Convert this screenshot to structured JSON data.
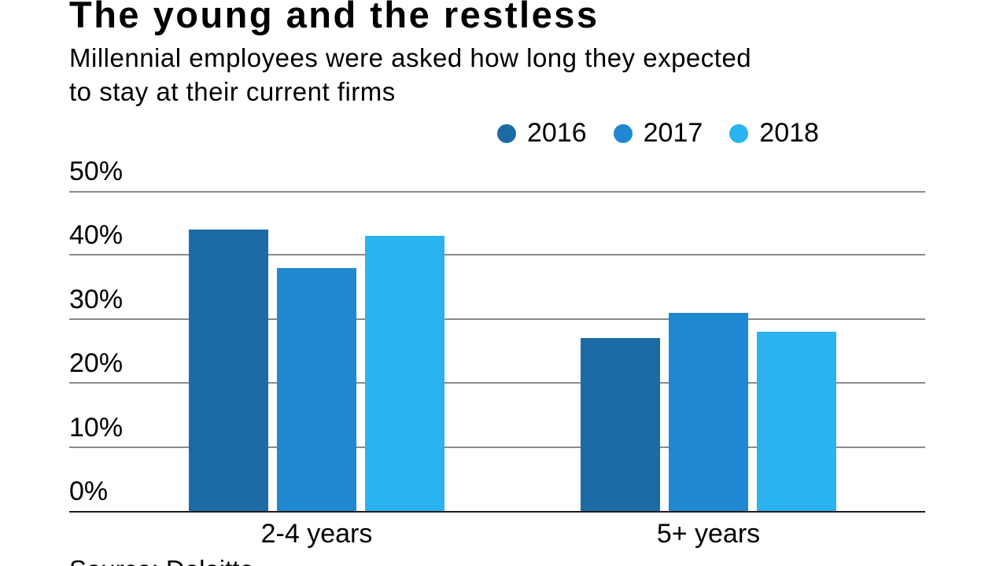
{
  "header": {
    "title": "The young and the restless",
    "subtitle_lines": [
      "Millennial employees were asked how long they expected",
      "to stay at their current firms"
    ]
  },
  "footer": {
    "source": "Source: Deloitte"
  },
  "chart_data": {
    "type": "bar",
    "title": "The young and the restless",
    "subtitle": "Millennial employees were asked how long they expected to stay at their current firms",
    "categories": [
      "2-4 years",
      "5+ years"
    ],
    "series": [
      {
        "name": "2016",
        "color": "#1d6ba5",
        "values": [
          44,
          27
        ]
      },
      {
        "name": "2017",
        "color": "#1f88d1",
        "values": [
          38,
          31
        ]
      },
      {
        "name": "2018",
        "color": "#2ab3ee",
        "values": [
          43,
          28
        ]
      }
    ],
    "ylim": [
      0,
      50
    ],
    "y_ticks": [
      "0%",
      "10%",
      "20%",
      "30%",
      "40%",
      "50%"
    ],
    "grid": "horizontal",
    "legend_position": "top-right",
    "axis_color": "#1a1a1a",
    "gridline_color": "#8a8a8a",
    "source": "Source: Deloitte"
  }
}
